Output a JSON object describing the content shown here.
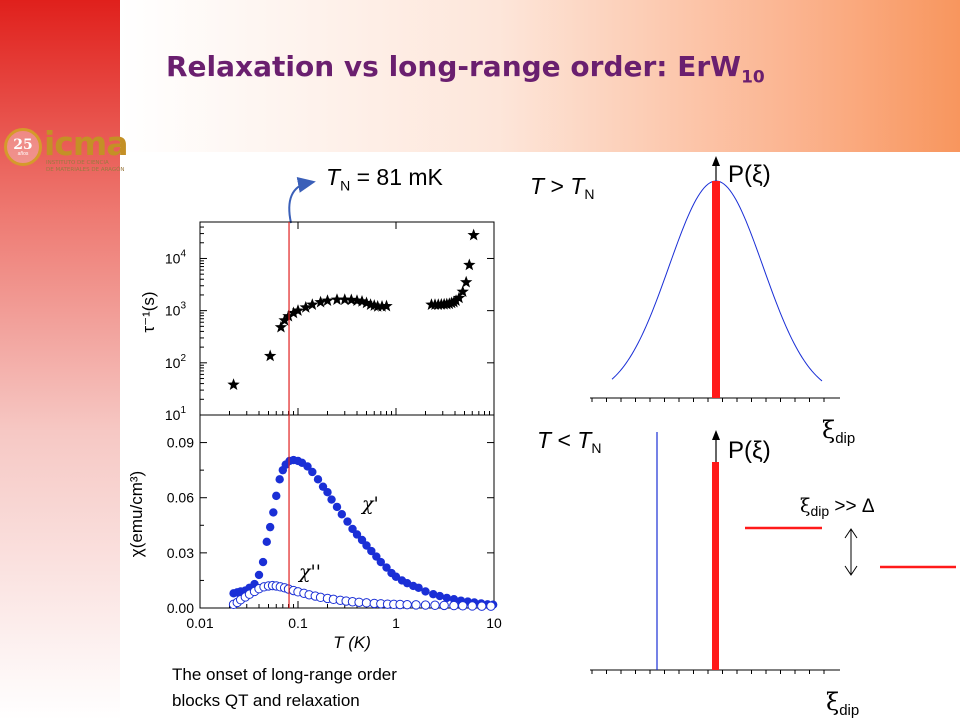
{
  "slide": {
    "title_main": "Relaxation vs long-range order: ErW",
    "title_sub": "10",
    "logo_text": "icma",
    "logo_number": "25",
    "logo_mini": "años",
    "logo_subline1": "INSTITUTO DE CIENCIA",
    "logo_subline2": "DE MATERIALES DE ARAGÓN",
    "tn_label_T": "T",
    "tn_label_N": "N",
    "tn_label_value": " = 81 mK",
    "caption_line1": "The onset of long-range order",
    "caption_line2": "blocks QT and relaxation"
  },
  "chart_data": [
    {
      "type": "scatter",
      "name": "relaxation-rate",
      "ylabel": "τ⁻¹(s)",
      "xscale": "log",
      "yscale": "log",
      "xlim": [
        0.01,
        10
      ],
      "ylim": [
        10,
        50000
      ],
      "yticks": [
        {
          "value": 10,
          "base": "10",
          "exp": "1"
        },
        {
          "value": 100,
          "base": "10",
          "exp": "2"
        },
        {
          "value": 1000,
          "base": "10",
          "exp": "3"
        },
        {
          "value": 10000,
          "base": "10",
          "exp": "4"
        }
      ],
      "marker": "star",
      "marker_color": "#000000",
      "points": [
        [
          0.022,
          38
        ],
        [
          0.052,
          135
        ],
        [
          0.067,
          480
        ],
        [
          0.073,
          650
        ],
        [
          0.08,
          780
        ],
        [
          0.09,
          900
        ],
        [
          0.1,
          1000
        ],
        [
          0.12,
          1150
        ],
        [
          0.14,
          1300
        ],
        [
          0.17,
          1450
        ],
        [
          0.2,
          1550
        ],
        [
          0.25,
          1620
        ],
        [
          0.3,
          1620
        ],
        [
          0.35,
          1600
        ],
        [
          0.4,
          1550
        ],
        [
          0.45,
          1500
        ],
        [
          0.5,
          1400
        ],
        [
          0.55,
          1300
        ],
        [
          0.6,
          1250
        ],
        [
          0.65,
          1200
        ],
        [
          0.72,
          1200
        ],
        [
          0.8,
          1220
        ],
        [
          2.3,
          1300
        ],
        [
          2.5,
          1300
        ],
        [
          2.7,
          1300
        ],
        [
          2.9,
          1310
        ],
        [
          3.1,
          1320
        ],
        [
          3.3,
          1330
        ],
        [
          3.5,
          1350
        ],
        [
          3.7,
          1400
        ],
        [
          3.9,
          1450
        ],
        [
          4.1,
          1550
        ],
        [
          4.4,
          1750
        ],
        [
          4.8,
          2300
        ],
        [
          5.2,
          3500
        ],
        [
          5.6,
          7500
        ],
        [
          6.2,
          28000
        ]
      ]
    },
    {
      "type": "scatter",
      "name": "susceptibility",
      "xlabel": "T (K)",
      "ylabel": "χ(emu/cm³)",
      "xscale": "log",
      "xlim": [
        0.01,
        10
      ],
      "ylim": [
        0.0,
        0.105
      ],
      "xticks": [
        {
          "value": 0.01,
          "label": "0.01"
        },
        {
          "value": 0.1,
          "label": "0.1"
        },
        {
          "value": 1,
          "label": "1"
        },
        {
          "value": 10,
          "label": "10"
        }
      ],
      "yticks": [
        {
          "value": 0.0,
          "label": "0.00"
        },
        {
          "value": 0.03,
          "label": "0.03"
        },
        {
          "value": 0.06,
          "label": "0.06"
        },
        {
          "value": 0.09,
          "label": "0.09"
        }
      ],
      "series": [
        {
          "name": "χ'",
          "marker": "filled-circle",
          "color": "#1a2fd6",
          "points": [
            [
              0.022,
              0.008
            ],
            [
              0.024,
              0.0085
            ],
            [
              0.026,
              0.009
            ],
            [
              0.029,
              0.0095
            ],
            [
              0.032,
              0.011
            ],
            [
              0.036,
              0.013
            ],
            [
              0.04,
              0.018
            ],
            [
              0.044,
              0.025
            ],
            [
              0.048,
              0.036
            ],
            [
              0.052,
              0.044
            ],
            [
              0.056,
              0.052
            ],
            [
              0.06,
              0.061
            ],
            [
              0.065,
              0.07
            ],
            [
              0.07,
              0.075
            ],
            [
              0.075,
              0.078
            ],
            [
              0.082,
              0.08
            ],
            [
              0.09,
              0.0805
            ],
            [
              0.1,
              0.08
            ],
            [
              0.11,
              0.079
            ],
            [
              0.125,
              0.077
            ],
            [
              0.14,
              0.074
            ],
            [
              0.16,
              0.07
            ],
            [
              0.18,
              0.066
            ],
            [
              0.2,
              0.063
            ],
            [
              0.22,
              0.059
            ],
            [
              0.25,
              0.055
            ],
            [
              0.28,
              0.051
            ],
            [
              0.32,
              0.047
            ],
            [
              0.36,
              0.043
            ],
            [
              0.4,
              0.04
            ],
            [
              0.45,
              0.037
            ],
            [
              0.5,
              0.034
            ],
            [
              0.56,
              0.031
            ],
            [
              0.63,
              0.028
            ],
            [
              0.7,
              0.025
            ],
            [
              0.8,
              0.022
            ],
            [
              0.9,
              0.019
            ],
            [
              1.0,
              0.017
            ],
            [
              1.15,
              0.015
            ],
            [
              1.3,
              0.0135
            ],
            [
              1.5,
              0.012
            ],
            [
              1.7,
              0.011
            ],
            [
              2.0,
              0.009
            ],
            [
              2.4,
              0.0075
            ],
            [
              2.8,
              0.0065
            ],
            [
              3.3,
              0.0055
            ],
            [
              3.9,
              0.0048
            ],
            [
              4.6,
              0.004
            ],
            [
              5.4,
              0.0035
            ],
            [
              6.3,
              0.003
            ],
            [
              7.4,
              0.0025
            ],
            [
              8.6,
              0.002
            ],
            [
              9.8,
              0.0018
            ]
          ]
        },
        {
          "name": "χ''",
          "marker": "open-circle",
          "color": "#1a2fd6",
          "points": [
            [
              0.022,
              0.002
            ],
            [
              0.024,
              0.003
            ],
            [
              0.026,
              0.0045
            ],
            [
              0.029,
              0.006
            ],
            [
              0.032,
              0.0075
            ],
            [
              0.036,
              0.009
            ],
            [
              0.04,
              0.0105
            ],
            [
              0.045,
              0.0115
            ],
            [
              0.05,
              0.012
            ],
            [
              0.055,
              0.0122
            ],
            [
              0.06,
              0.012
            ],
            [
              0.066,
              0.0115
            ],
            [
              0.073,
              0.011
            ],
            [
              0.08,
              0.0103
            ],
            [
              0.09,
              0.0095
            ],
            [
              0.1,
              0.0088
            ],
            [
              0.115,
              0.008
            ],
            [
              0.13,
              0.0072
            ],
            [
              0.15,
              0.0065
            ],
            [
              0.17,
              0.0058
            ],
            [
              0.2,
              0.0052
            ],
            [
              0.23,
              0.0047
            ],
            [
              0.27,
              0.0042
            ],
            [
              0.31,
              0.0038
            ],
            [
              0.36,
              0.0034
            ],
            [
              0.42,
              0.0031
            ],
            [
              0.5,
              0.0028
            ],
            [
              0.6,
              0.0025
            ],
            [
              0.7,
              0.0023
            ],
            [
              0.82,
              0.0021
            ],
            [
              0.95,
              0.002
            ],
            [
              1.1,
              0.0019
            ],
            [
              1.3,
              0.0018
            ],
            [
              1.6,
              0.0017
            ],
            [
              2.0,
              0.0016
            ],
            [
              2.5,
              0.0015
            ],
            [
              3.1,
              0.0014
            ],
            [
              3.9,
              0.0013
            ],
            [
              4.8,
              0.0012
            ],
            [
              6.0,
              0.0011
            ],
            [
              7.5,
              0.001
            ],
            [
              9.3,
              0.001
            ]
          ]
        }
      ],
      "vertical_line": {
        "x": 0.081,
        "color": "#e02020"
      }
    },
    {
      "type": "line",
      "name": "distribution-high-T",
      "title_T": "T",
      "title_rel": " > ",
      "title_N": "N",
      "ylabel": "P(ξ)",
      "xlabel_base": "ξ",
      "xlabel_sub": "dip",
      "curve": "gaussian",
      "curve_color": "#1a2fd6",
      "bar_color": "#ff1a1a"
    },
    {
      "type": "line",
      "name": "distribution-low-T",
      "title_T": "T",
      "title_rel": " < ",
      "title_N": "N",
      "ylabel": "P(ξ)",
      "xlabel_base": "ξ",
      "xlabel_sub": "dip",
      "line_color": "#1a2fd6",
      "bar_color": "#ff1a1a",
      "annotation_base": "ξ",
      "annotation_sub": "dip",
      "annotation_rest": " >> Δ",
      "level_color": "#ff1a1a"
    }
  ]
}
